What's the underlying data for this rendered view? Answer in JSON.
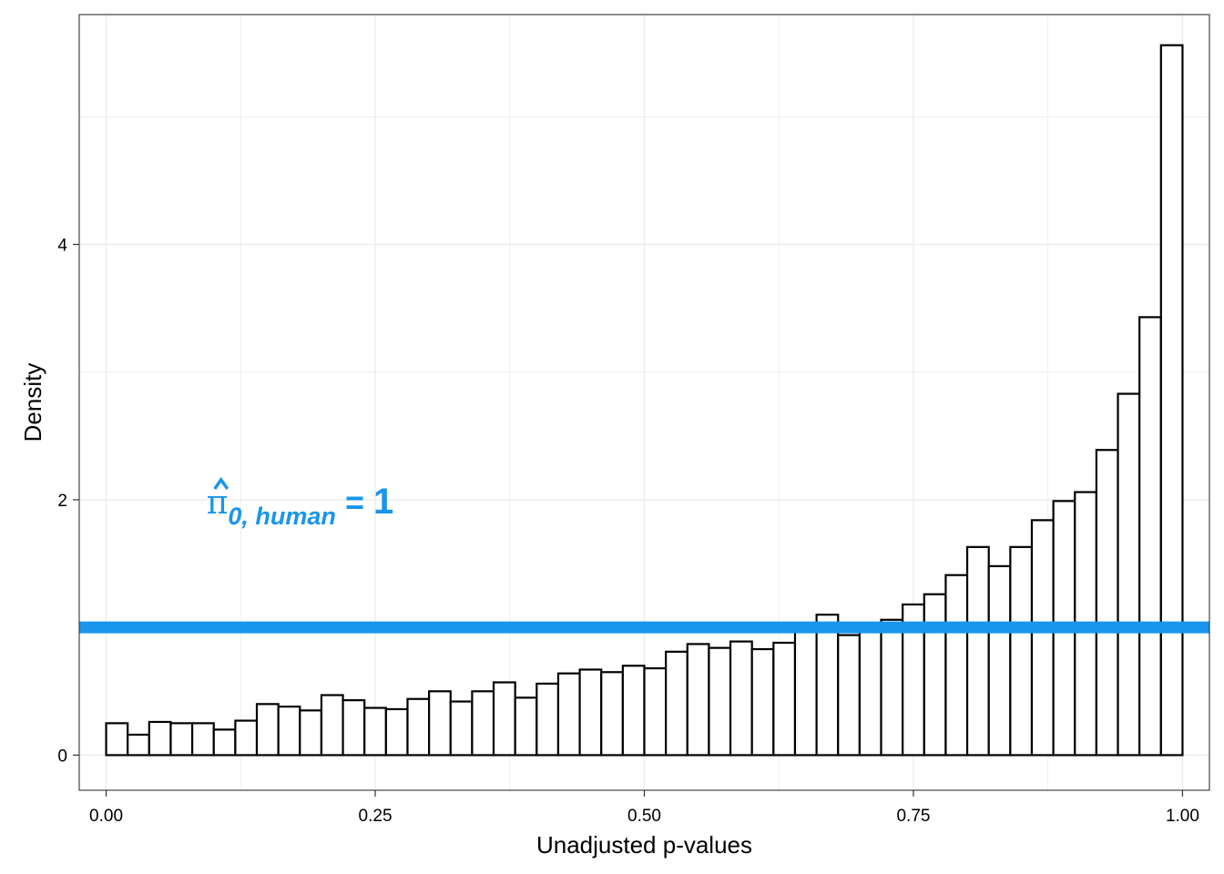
{
  "chart_data": {
    "type": "bar",
    "subtype": "histogram",
    "xlabel": "Unadjusted p-values",
    "ylabel": "Density",
    "xlim": [
      -0.025,
      1.025
    ],
    "ylim": [
      -0.275,
      5.8
    ],
    "x_ticks": [
      0,
      0.25,
      0.5,
      0.75,
      1
    ],
    "x_tick_labels": [
      "0.00",
      "0.25",
      "0.50",
      "0.75",
      "1.00"
    ],
    "y_ticks": [
      0,
      2,
      4
    ],
    "y_tick_labels": [
      "0",
      "2",
      "4"
    ],
    "grid": true,
    "bin_width": 0.02,
    "bin_starts": [
      0.0,
      0.02,
      0.04,
      0.06,
      0.08,
      0.1,
      0.12,
      0.14,
      0.16,
      0.18,
      0.2,
      0.22,
      0.24,
      0.26,
      0.28,
      0.3,
      0.32,
      0.34,
      0.36,
      0.38,
      0.4,
      0.42,
      0.44,
      0.46,
      0.48,
      0.5,
      0.52,
      0.54,
      0.56,
      0.58,
      0.6,
      0.62,
      0.64,
      0.66,
      0.68,
      0.7,
      0.72,
      0.74,
      0.76,
      0.78,
      0.8,
      0.82,
      0.84,
      0.86,
      0.88,
      0.9,
      0.92,
      0.94,
      0.96,
      0.98
    ],
    "values": [
      0.25,
      0.16,
      0.26,
      0.25,
      0.25,
      0.2,
      0.27,
      0.4,
      0.38,
      0.35,
      0.47,
      0.43,
      0.37,
      0.36,
      0.44,
      0.5,
      0.42,
      0.5,
      0.57,
      0.45,
      0.56,
      0.64,
      0.67,
      0.65,
      0.7,
      0.68,
      0.81,
      0.87,
      0.84,
      0.89,
      0.83,
      0.88,
      0.99,
      1.1,
      0.94,
      1.01,
      1.06,
      1.18,
      1.26,
      1.41,
      1.63,
      1.48,
      1.63,
      1.84,
      1.99,
      2.06,
      2.39,
      2.83,
      3.43,
      5.56
    ],
    "reference_line": {
      "y": 1,
      "color": "#1a95ec"
    },
    "annotation": {
      "symbol": "π",
      "subscript": "0, human",
      "equals": " = ",
      "value": "1",
      "x": 0.1,
      "y": 1.95
    },
    "colors": {
      "bar_fill": "#ffffff",
      "bar_stroke": "#000000",
      "accent": "#1a95ec",
      "grid": "#ebebeb",
      "panel_border": "#333333"
    }
  }
}
